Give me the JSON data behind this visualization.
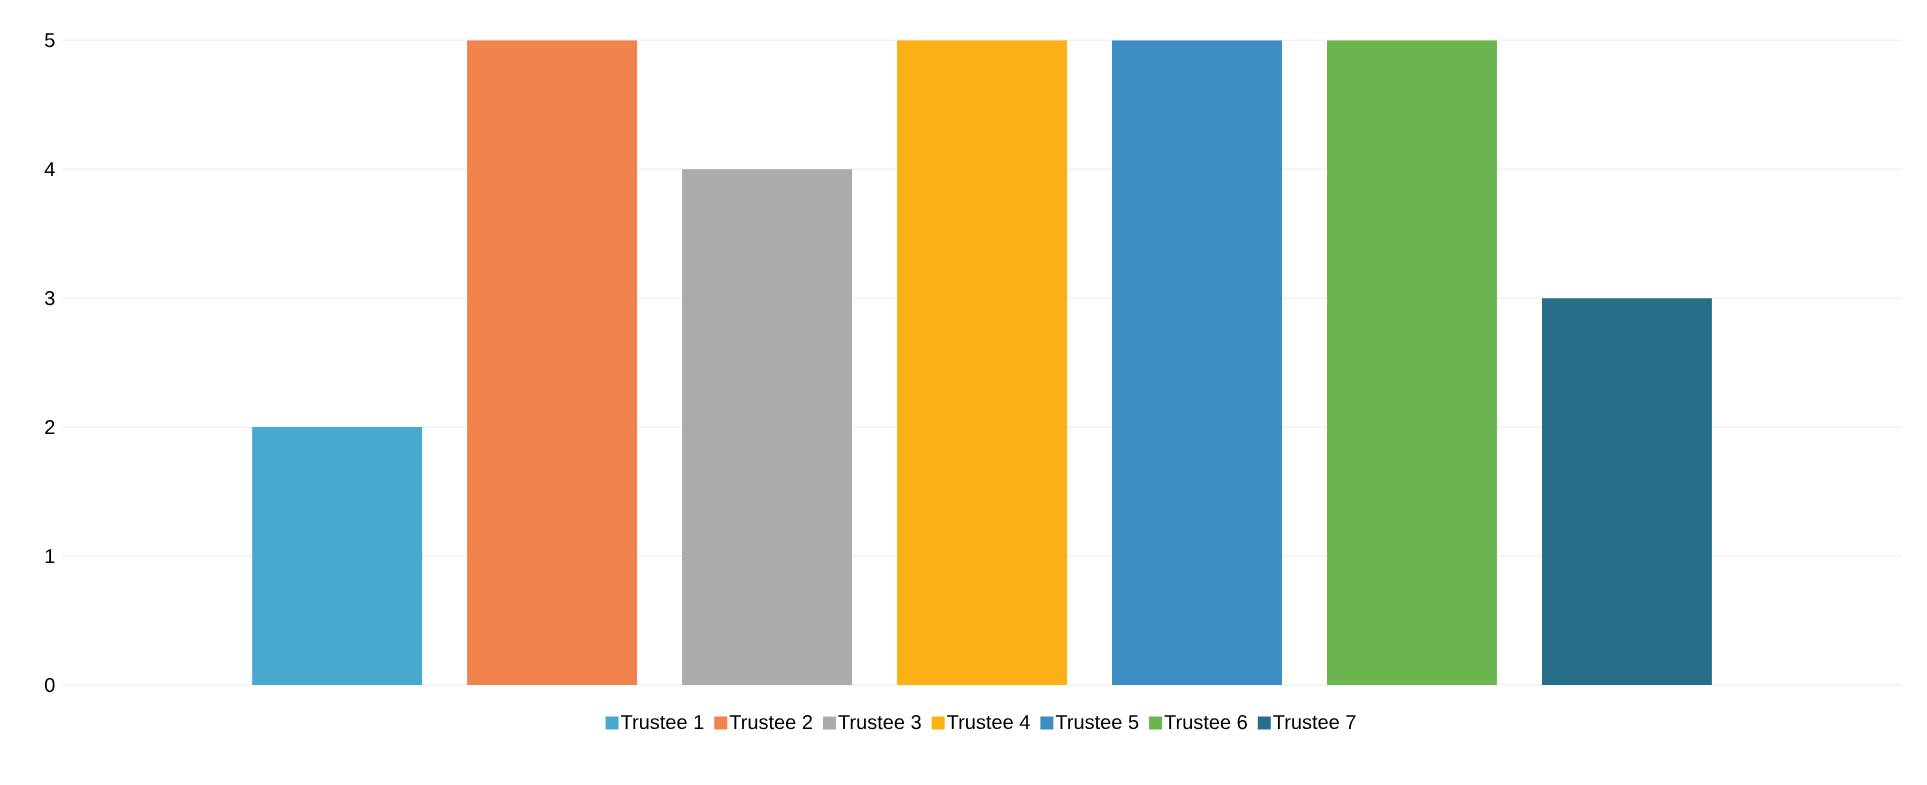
{
  "chart_data": {
    "type": "bar",
    "categories": [
      null
    ],
    "series": [
      {
        "name": "Trustee 1",
        "color": "#48a8d0",
        "values": [
          2
        ]
      },
      {
        "name": "Trustee 2",
        "color": "#f0844c",
        "values": [
          5
        ]
      },
      {
        "name": "Trustee 3",
        "color": "#a9aca8",
        "values": [
          4
        ]
      },
      {
        "name": "Trustee 4",
        "color": "#fbb116",
        "values": [
          5
        ]
      },
      {
        "name": "Trustee 5",
        "color": "#3d8dc4",
        "values": [
          5
        ]
      },
      {
        "name": "Trustee 6",
        "color": "#6bb54f",
        "values": [
          5
        ]
      },
      {
        "name": "Trustee 7",
        "color": "#276e88",
        "values": [
          3
        ]
      }
    ],
    "ylim": [
      0,
      5
    ],
    "yticks": [
      0,
      1,
      2,
      3,
      4,
      5
    ],
    "grid": "y",
    "legend": "bottom"
  }
}
